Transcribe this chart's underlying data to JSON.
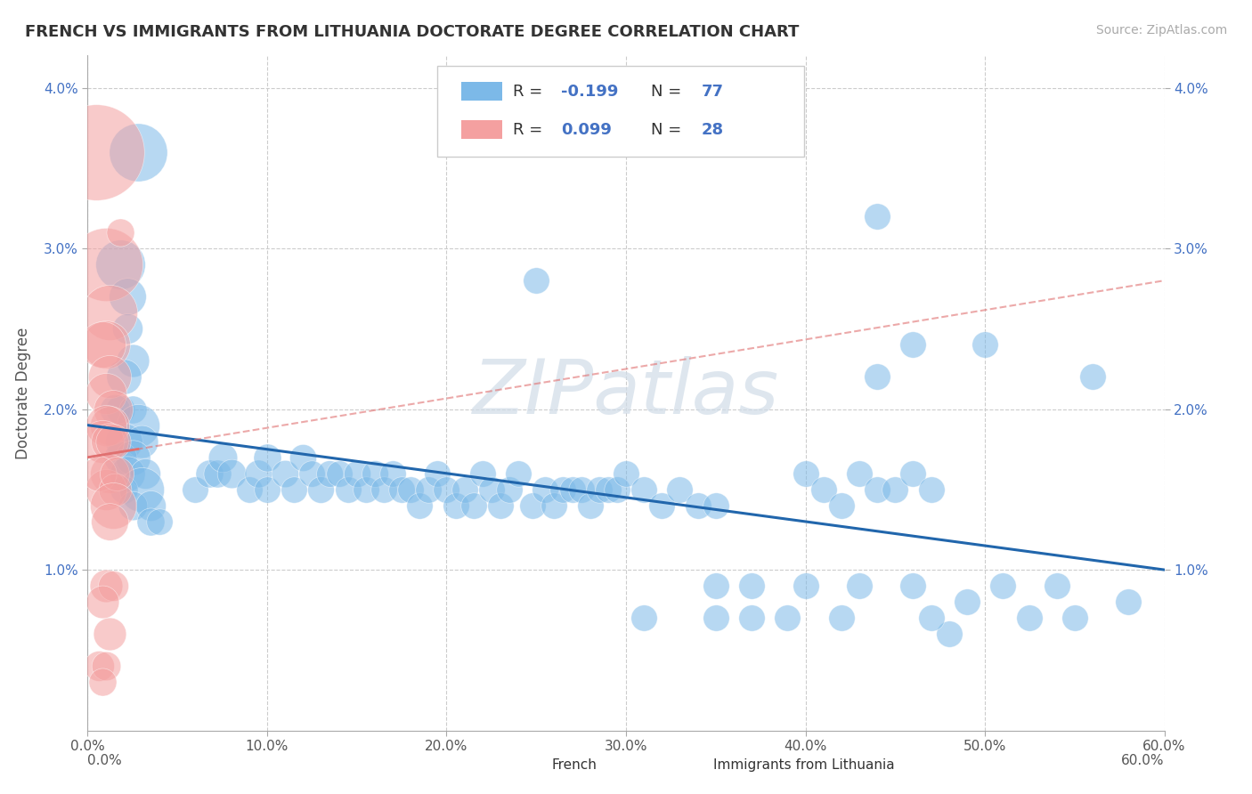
{
  "title": "FRENCH VS IMMIGRANTS FROM LITHUANIA DOCTORATE DEGREE CORRELATION CHART",
  "source": "Source: ZipAtlas.com",
  "ylabel": "Doctorate Degree",
  "xlim": [
    0.0,
    0.6
  ],
  "ylim": [
    0.0,
    0.042
  ],
  "xtick_labels": [
    "0.0%",
    "10.0%",
    "20.0%",
    "30.0%",
    "40.0%",
    "50.0%",
    "60.0%"
  ],
  "xtick_vals": [
    0.0,
    0.1,
    0.2,
    0.3,
    0.4,
    0.5,
    0.6
  ],
  "ytick_labels": [
    "1.0%",
    "2.0%",
    "3.0%",
    "4.0%"
  ],
  "ytick_vals": [
    0.01,
    0.02,
    0.03,
    0.04
  ],
  "french_color": "#7cb9e8",
  "immigrants_color": "#f4a0a0",
  "watermark": "ZIPatlas",
  "french_trend_x": [
    0.0,
    0.6
  ],
  "french_trend_y": [
    0.019,
    0.01
  ],
  "imm_trend_x": [
    0.0,
    0.6
  ],
  "imm_trend_y": [
    0.017,
    0.028
  ],
  "french_points": [
    [
      0.028,
      0.036,
      2200
    ],
    [
      0.018,
      0.029,
      1600
    ],
    [
      0.022,
      0.027,
      900
    ],
    [
      0.022,
      0.025,
      600
    ],
    [
      0.025,
      0.023,
      700
    ],
    [
      0.02,
      0.022,
      800
    ],
    [
      0.018,
      0.02,
      550
    ],
    [
      0.015,
      0.02,
      600
    ],
    [
      0.025,
      0.02,
      500
    ],
    [
      0.028,
      0.019,
      1200
    ],
    [
      0.02,
      0.018,
      900
    ],
    [
      0.03,
      0.018,
      700
    ],
    [
      0.018,
      0.017,
      700
    ],
    [
      0.025,
      0.017,
      800
    ],
    [
      0.022,
      0.016,
      800
    ],
    [
      0.032,
      0.016,
      600
    ],
    [
      0.02,
      0.015,
      500
    ],
    [
      0.03,
      0.015,
      1300
    ],
    [
      0.025,
      0.014,
      550
    ],
    [
      0.035,
      0.014,
      600
    ],
    [
      0.035,
      0.013,
      500
    ],
    [
      0.04,
      0.013,
      450
    ],
    [
      0.06,
      0.015,
      450
    ],
    [
      0.068,
      0.016,
      500
    ],
    [
      0.072,
      0.016,
      500
    ],
    [
      0.075,
      0.017,
      550
    ],
    [
      0.08,
      0.016,
      550
    ],
    [
      0.09,
      0.015,
      450
    ],
    [
      0.095,
      0.016,
      500
    ],
    [
      0.1,
      0.015,
      450
    ],
    [
      0.1,
      0.017,
      500
    ],
    [
      0.11,
      0.016,
      480
    ],
    [
      0.115,
      0.015,
      450
    ],
    [
      0.12,
      0.017,
      470
    ],
    [
      0.125,
      0.016,
      450
    ],
    [
      0.13,
      0.015,
      460
    ],
    [
      0.135,
      0.016,
      460
    ],
    [
      0.14,
      0.016,
      450
    ],
    [
      0.145,
      0.015,
      450
    ],
    [
      0.15,
      0.016,
      470
    ],
    [
      0.155,
      0.015,
      450
    ],
    [
      0.16,
      0.016,
      460
    ],
    [
      0.165,
      0.015,
      450
    ],
    [
      0.17,
      0.016,
      450
    ],
    [
      0.175,
      0.015,
      450
    ],
    [
      0.18,
      0.015,
      450
    ],
    [
      0.185,
      0.014,
      450
    ],
    [
      0.19,
      0.015,
      450
    ],
    [
      0.195,
      0.016,
      450
    ],
    [
      0.2,
      0.015,
      450
    ],
    [
      0.205,
      0.014,
      450
    ],
    [
      0.21,
      0.015,
      450
    ],
    [
      0.215,
      0.014,
      450
    ],
    [
      0.22,
      0.016,
      450
    ],
    [
      0.225,
      0.015,
      450
    ],
    [
      0.23,
      0.014,
      450
    ],
    [
      0.235,
      0.015,
      450
    ],
    [
      0.24,
      0.016,
      450
    ],
    [
      0.248,
      0.014,
      450
    ],
    [
      0.255,
      0.015,
      450
    ],
    [
      0.26,
      0.014,
      450
    ],
    [
      0.265,
      0.015,
      450
    ],
    [
      0.27,
      0.015,
      450
    ],
    [
      0.275,
      0.015,
      450
    ],
    [
      0.28,
      0.014,
      450
    ],
    [
      0.285,
      0.015,
      450
    ],
    [
      0.29,
      0.015,
      450
    ],
    [
      0.295,
      0.015,
      450
    ],
    [
      0.3,
      0.016,
      450
    ],
    [
      0.31,
      0.015,
      450
    ],
    [
      0.32,
      0.014,
      450
    ],
    [
      0.33,
      0.015,
      450
    ],
    [
      0.34,
      0.014,
      450
    ],
    [
      0.35,
      0.014,
      450
    ],
    [
      0.25,
      0.028,
      450
    ],
    [
      0.44,
      0.032,
      450
    ],
    [
      0.46,
      0.024,
      450
    ],
    [
      0.5,
      0.024,
      450
    ],
    [
      0.44,
      0.022,
      450
    ],
    [
      0.4,
      0.016,
      450
    ],
    [
      0.41,
      0.015,
      450
    ],
    [
      0.42,
      0.014,
      450
    ],
    [
      0.43,
      0.016,
      450
    ],
    [
      0.44,
      0.015,
      450
    ],
    [
      0.45,
      0.015,
      450
    ],
    [
      0.46,
      0.016,
      450
    ],
    [
      0.47,
      0.015,
      450
    ],
    [
      0.35,
      0.009,
      450
    ],
    [
      0.37,
      0.009,
      450
    ],
    [
      0.4,
      0.009,
      450
    ],
    [
      0.43,
      0.009,
      450
    ],
    [
      0.46,
      0.009,
      450
    ],
    [
      0.49,
      0.008,
      450
    ],
    [
      0.51,
      0.009,
      450
    ],
    [
      0.54,
      0.009,
      450
    ],
    [
      0.56,
      0.022,
      450
    ],
    [
      0.58,
      0.008,
      450
    ],
    [
      0.35,
      0.007,
      450
    ],
    [
      0.42,
      0.007,
      450
    ],
    [
      0.48,
      0.006,
      450
    ],
    [
      0.55,
      0.007,
      450
    ],
    [
      0.31,
      0.007,
      450
    ],
    [
      0.37,
      0.007,
      450
    ],
    [
      0.39,
      0.007,
      450
    ],
    [
      0.47,
      0.007,
      450
    ],
    [
      0.525,
      0.007,
      450
    ]
  ],
  "immigrants_points": [
    [
      0.005,
      0.036,
      6000
    ],
    [
      0.01,
      0.029,
      3500
    ],
    [
      0.012,
      0.026,
      2000
    ],
    [
      0.01,
      0.024,
      1500
    ],
    [
      0.008,
      0.024,
      1400
    ],
    [
      0.012,
      0.022,
      1200
    ],
    [
      0.01,
      0.021,
      1100
    ],
    [
      0.014,
      0.02,
      1000
    ],
    [
      0.012,
      0.019,
      1000
    ],
    [
      0.01,
      0.019,
      1100
    ],
    [
      0.008,
      0.018,
      1200
    ],
    [
      0.012,
      0.018,
      900
    ],
    [
      0.014,
      0.018,
      800
    ],
    [
      0.012,
      0.016,
      1000
    ],
    [
      0.01,
      0.015,
      1100
    ],
    [
      0.006,
      0.016,
      800
    ],
    [
      0.015,
      0.015,
      700
    ],
    [
      0.016,
      0.016,
      750
    ],
    [
      0.014,
      0.014,
      1400
    ],
    [
      0.012,
      0.013,
      900
    ],
    [
      0.01,
      0.009,
      700
    ],
    [
      0.014,
      0.009,
      600
    ],
    [
      0.008,
      0.008,
      700
    ],
    [
      0.012,
      0.006,
      700
    ],
    [
      0.006,
      0.004,
      600
    ],
    [
      0.01,
      0.004,
      550
    ],
    [
      0.008,
      0.003,
      500
    ],
    [
      0.018,
      0.031,
      500
    ]
  ]
}
